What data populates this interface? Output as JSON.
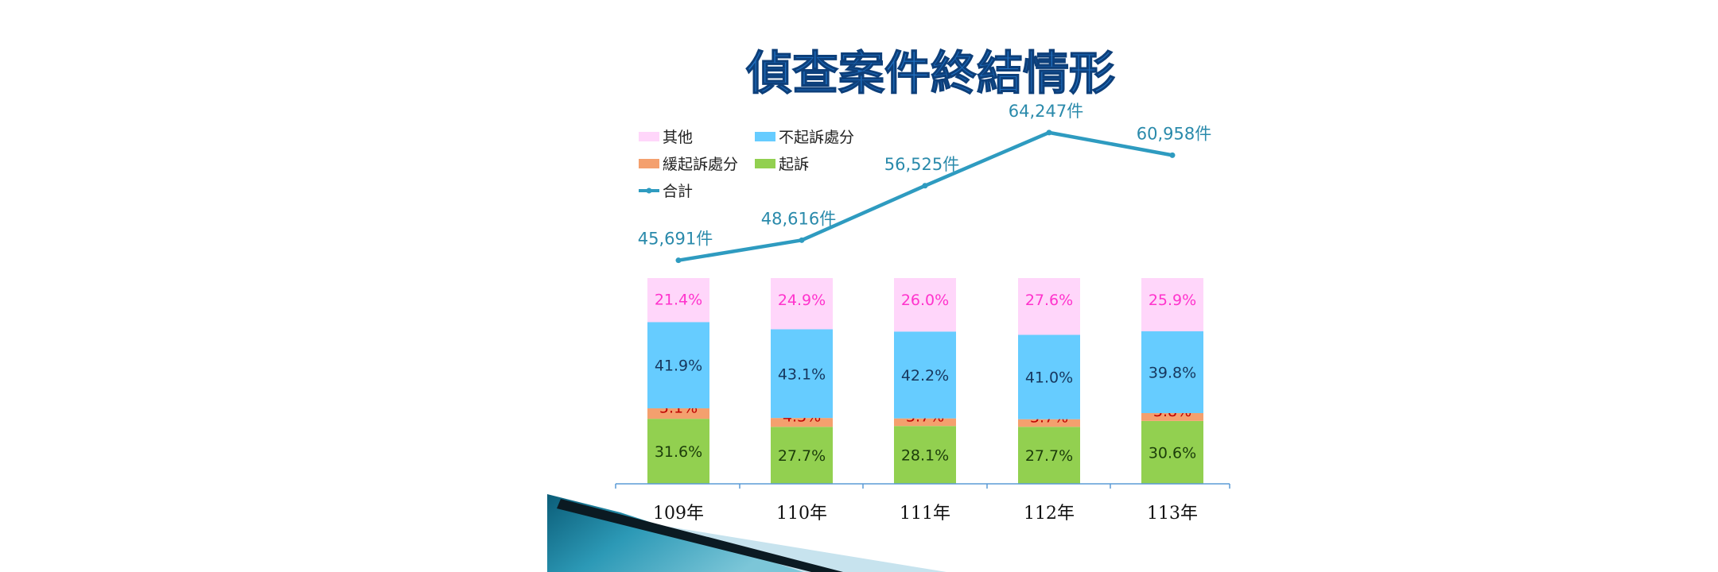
{
  "colors": {
    "other": "#ffd6fa",
    "non_indictment": "#66ccff",
    "deferred": "#f4a06e",
    "indictment": "#92d050",
    "total": "#2e9bc0",
    "axis": "#5b9bd5",
    "title": "#1f6fc0",
    "label_other": "#ff33cc",
    "label_non_indictment": "#17375e",
    "label_deferred": "#c00000",
    "label_indictment": "#1c3d0a",
    "label_total": "#2a8aab"
  },
  "chart_data": {
    "type": "bar",
    "stacked": true,
    "title": "偵查案件終結情形",
    "categories": [
      "109年",
      "110年",
      "111年",
      "112年",
      "113年"
    ],
    "series": [
      {
        "key": "indictment",
        "name": "起訴",
        "values": [
          31.6,
          27.7,
          28.1,
          27.7,
          30.6
        ],
        "labels": [
          "31.6%",
          "27.7%",
          "28.1%",
          "27.7%",
          "30.6%"
        ]
      },
      {
        "key": "deferred",
        "name": "緩起訴處分",
        "values": [
          5.1,
          4.3,
          3.7,
          3.7,
          3.8
        ],
        "labels": [
          "5.1%",
          "4.3%",
          "3.7%",
          "3.7%",
          "3.8%"
        ]
      },
      {
        "key": "non_indictment",
        "name": "不起訴處分",
        "values": [
          41.9,
          43.1,
          42.2,
          41.0,
          39.8
        ],
        "labels": [
          "41.9%",
          "43.1%",
          "42.2%",
          "41.0%",
          "39.8%"
        ]
      },
      {
        "key": "other",
        "name": "其他",
        "values": [
          21.4,
          24.9,
          26.0,
          27.6,
          25.9
        ],
        "labels": [
          "21.4%",
          "24.9%",
          "26.0%",
          "27.6%",
          "25.9%"
        ]
      }
    ],
    "line": {
      "key": "total",
      "name": "合計",
      "values": [
        45691,
        48616,
        56525,
        64247,
        60958
      ],
      "labels": [
        "45,691件",
        "48,616件",
        "56,525件",
        "64,247件",
        "60,958件"
      ]
    },
    "legend": {
      "placement": "top-left",
      "order": [
        "other",
        "non_indictment",
        "deferred",
        "indictment",
        "total"
      ]
    }
  }
}
